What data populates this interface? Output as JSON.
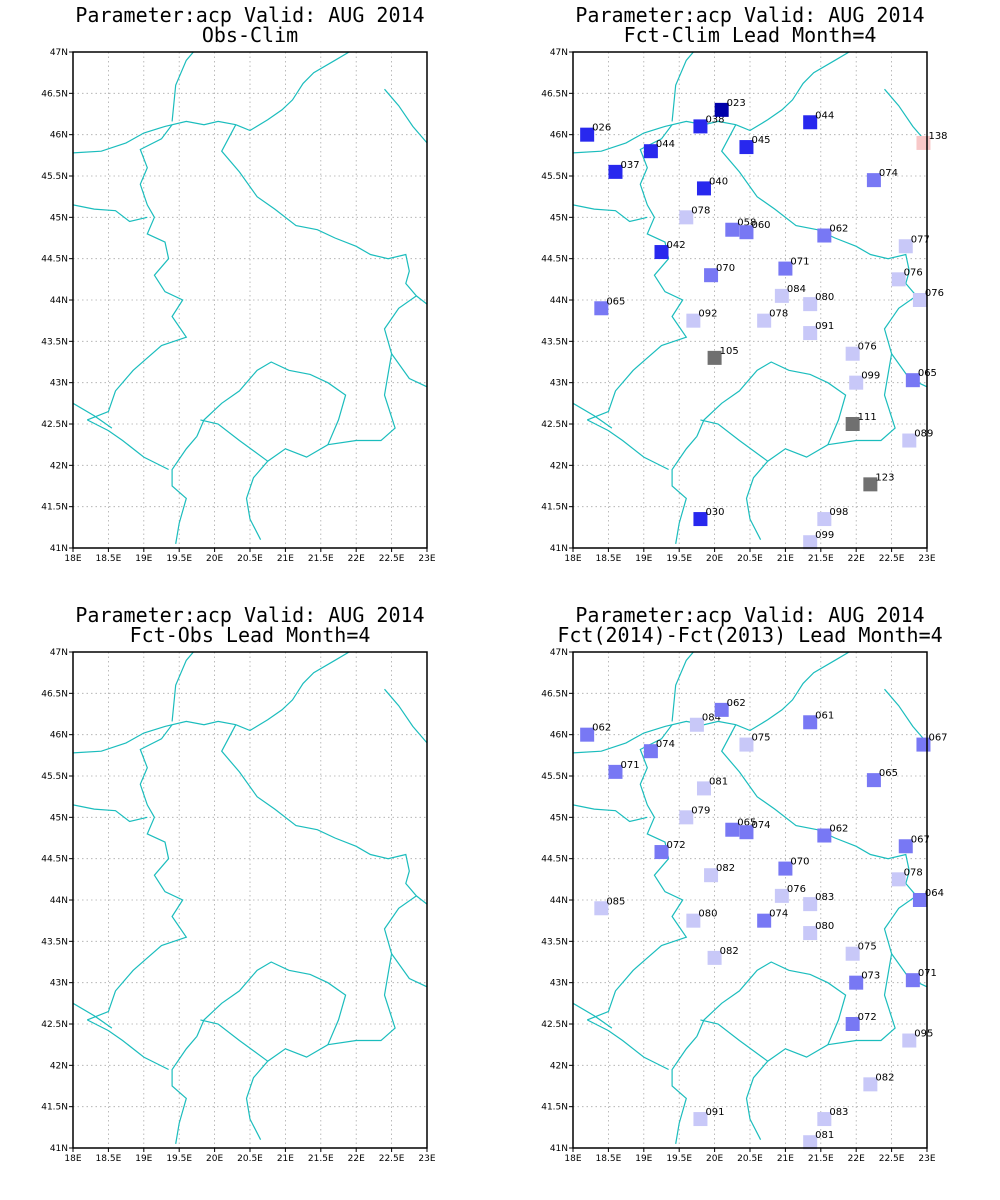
{
  "colors": {
    "border": "#1bbdbd",
    "grid": "#aaaaaa",
    "frame": "#000000",
    "bin_colors": {
      "deep_blue": "#0000aa",
      "blue": "#2828ee",
      "mid_blue": "#7878f4",
      "light_blue": "#c8c8f8",
      "gray": "#707070",
      "pink": "#f8c8c8"
    }
  },
  "axes": {
    "lat_ticks": [
      "41N",
      "41.5N",
      "42N",
      "42.5N",
      "43N",
      "43.5N",
      "44N",
      "44.5N",
      "45N",
      "45.5N",
      "46N",
      "46.5N",
      "47N"
    ],
    "lon_ticks": [
      "18E",
      "18.5E",
      "19E",
      "19.5E",
      "20E",
      "20.5E",
      "21E",
      "21.5E",
      "22E",
      "22.5E",
      "23E"
    ],
    "lat_range": [
      41,
      47
    ],
    "lon_range": [
      18,
      23
    ]
  },
  "panels": [
    {
      "title_line1": "Parameter:acp Valid: AUG 2014",
      "title_line2": "Obs-Clim",
      "stations": []
    },
    {
      "title_line1": "Parameter:acp Valid: AUG 2014",
      "title_line2": "Fct-Clim Lead Month=4",
      "stations": [
        {
          "lon": 18.2,
          "lat": 46.0,
          "label": "026",
          "color": "blue"
        },
        {
          "lon": 18.6,
          "lat": 45.55,
          "label": "037",
          "color": "blue"
        },
        {
          "lon": 19.1,
          "lat": 45.8,
          "label": "044",
          "color": "blue"
        },
        {
          "lon": 19.8,
          "lat": 46.1,
          "label": "038",
          "color": "blue"
        },
        {
          "lon": 20.1,
          "lat": 46.3,
          "label": "023",
          "color": "deep_blue"
        },
        {
          "lon": 20.45,
          "lat": 45.85,
          "label": "045",
          "color": "blue"
        },
        {
          "lon": 21.35,
          "lat": 46.15,
          "label": "044",
          "color": "blue"
        },
        {
          "lon": 22.95,
          "lat": 45.9,
          "label": "138",
          "color": "pink"
        },
        {
          "lon": 19.85,
          "lat": 45.35,
          "label": "040",
          "color": "blue"
        },
        {
          "lon": 22.25,
          "lat": 45.45,
          "label": "074",
          "color": "mid_blue"
        },
        {
          "lon": 19.6,
          "lat": 45.0,
          "label": "078",
          "color": "light_blue"
        },
        {
          "lon": 20.25,
          "lat": 44.85,
          "label": "058",
          "color": "mid_blue"
        },
        {
          "lon": 20.45,
          "lat": 44.82,
          "label": "060",
          "color": "mid_blue"
        },
        {
          "lon": 21.55,
          "lat": 44.78,
          "label": "062",
          "color": "mid_blue"
        },
        {
          "lon": 22.7,
          "lat": 44.65,
          "label": "077",
          "color": "light_blue"
        },
        {
          "lon": 19.25,
          "lat": 44.58,
          "label": "042",
          "color": "blue"
        },
        {
          "lon": 19.95,
          "lat": 44.3,
          "label": "070",
          "color": "mid_blue"
        },
        {
          "lon": 21.0,
          "lat": 44.38,
          "label": "071",
          "color": "mid_blue"
        },
        {
          "lon": 22.6,
          "lat": 44.25,
          "label": "076",
          "color": "light_blue"
        },
        {
          "lon": 22.9,
          "lat": 44.0,
          "label": "076",
          "color": "light_blue"
        },
        {
          "lon": 18.4,
          "lat": 43.9,
          "label": "065",
          "color": "mid_blue"
        },
        {
          "lon": 20.95,
          "lat": 44.05,
          "label": "084",
          "color": "light_blue"
        },
        {
          "lon": 21.35,
          "lat": 43.95,
          "label": "080",
          "color": "light_blue"
        },
        {
          "lon": 19.7,
          "lat": 43.75,
          "label": "092",
          "color": "light_blue"
        },
        {
          "lon": 20.7,
          "lat": 43.75,
          "label": "078",
          "color": "light_blue"
        },
        {
          "lon": 21.35,
          "lat": 43.6,
          "label": "091",
          "color": "light_blue"
        },
        {
          "lon": 20.0,
          "lat": 43.3,
          "label": "105",
          "color": "gray"
        },
        {
          "lon": 21.95,
          "lat": 43.35,
          "label": "076",
          "color": "light_blue"
        },
        {
          "lon": 22.0,
          "lat": 43.0,
          "label": "099",
          "color": "light_blue"
        },
        {
          "lon": 22.8,
          "lat": 43.03,
          "label": "065",
          "color": "mid_blue"
        },
        {
          "lon": 21.95,
          "lat": 42.5,
          "label": "111",
          "color": "gray"
        },
        {
          "lon": 22.75,
          "lat": 42.3,
          "label": "089",
          "color": "light_blue"
        },
        {
          "lon": 22.2,
          "lat": 41.77,
          "label": "123",
          "color": "gray"
        },
        {
          "lon": 19.8,
          "lat": 41.35,
          "label": "030",
          "color": "blue"
        },
        {
          "lon": 21.55,
          "lat": 41.35,
          "label": "098",
          "color": "light_blue"
        },
        {
          "lon": 21.35,
          "lat": 41.07,
          "label": "099",
          "color": "light_blue"
        }
      ]
    },
    {
      "title_line1": "Parameter:acp Valid: AUG 2014",
      "title_line2": "Fct-Obs Lead Month=4",
      "stations": []
    },
    {
      "title_line1": "Parameter:acp Valid: AUG 2014",
      "title_line2": "Fct(2014)-Fct(2013) Lead Month=4",
      "stations": [
        {
          "lon": 18.2,
          "lat": 46.0,
          "label": "062",
          "color": "mid_blue"
        },
        {
          "lon": 18.6,
          "lat": 45.55,
          "label": "071",
          "color": "mid_blue"
        },
        {
          "lon": 19.1,
          "lat": 45.8,
          "label": "074",
          "color": "mid_blue"
        },
        {
          "lon": 19.75,
          "lat": 46.12,
          "label": "084",
          "color": "light_blue"
        },
        {
          "lon": 20.1,
          "lat": 46.3,
          "label": "062",
          "color": "mid_blue"
        },
        {
          "lon": 20.45,
          "lat": 45.88,
          "label": "075",
          "color": "light_blue"
        },
        {
          "lon": 21.35,
          "lat": 46.15,
          "label": "061",
          "color": "mid_blue"
        },
        {
          "lon": 22.95,
          "lat": 45.88,
          "label": "067",
          "color": "mid_blue"
        },
        {
          "lon": 19.85,
          "lat": 45.35,
          "label": "081",
          "color": "light_blue"
        },
        {
          "lon": 22.25,
          "lat": 45.45,
          "label": "065",
          "color": "mid_blue"
        },
        {
          "lon": 19.6,
          "lat": 45.0,
          "label": "079",
          "color": "light_blue"
        },
        {
          "lon": 20.25,
          "lat": 44.85,
          "label": "065",
          "color": "mid_blue"
        },
        {
          "lon": 20.45,
          "lat": 44.82,
          "label": "074",
          "color": "mid_blue"
        },
        {
          "lon": 21.55,
          "lat": 44.78,
          "label": "062",
          "color": "mid_blue"
        },
        {
          "lon": 22.7,
          "lat": 44.65,
          "label": "067",
          "color": "mid_blue"
        },
        {
          "lon": 19.25,
          "lat": 44.58,
          "label": "072",
          "color": "mid_blue"
        },
        {
          "lon": 19.95,
          "lat": 44.3,
          "label": "082",
          "color": "light_blue"
        },
        {
          "lon": 21.0,
          "lat": 44.38,
          "label": "070",
          "color": "mid_blue"
        },
        {
          "lon": 22.6,
          "lat": 44.25,
          "label": "078",
          "color": "light_blue"
        },
        {
          "lon": 22.9,
          "lat": 44.0,
          "label": "064",
          "color": "mid_blue"
        },
        {
          "lon": 18.4,
          "lat": 43.9,
          "label": "085",
          "color": "light_blue"
        },
        {
          "lon": 20.95,
          "lat": 44.05,
          "label": "076",
          "color": "light_blue"
        },
        {
          "lon": 21.35,
          "lat": 43.95,
          "label": "083",
          "color": "light_blue"
        },
        {
          "lon": 19.7,
          "lat": 43.75,
          "label": "080",
          "color": "light_blue"
        },
        {
          "lon": 20.7,
          "lat": 43.75,
          "label": "074",
          "color": "mid_blue"
        },
        {
          "lon": 21.35,
          "lat": 43.6,
          "label": "080",
          "color": "light_blue"
        },
        {
          "lon": 20.0,
          "lat": 43.3,
          "label": "082",
          "color": "light_blue"
        },
        {
          "lon": 21.95,
          "lat": 43.35,
          "label": "075",
          "color": "light_blue"
        },
        {
          "lon": 22.0,
          "lat": 43.0,
          "label": "073",
          "color": "mid_blue"
        },
        {
          "lon": 22.8,
          "lat": 43.03,
          "label": "071",
          "color": "mid_blue"
        },
        {
          "lon": 21.95,
          "lat": 42.5,
          "label": "072",
          "color": "mid_blue"
        },
        {
          "lon": 22.75,
          "lat": 42.3,
          "label": "095",
          "color": "light_blue"
        },
        {
          "lon": 22.2,
          "lat": 41.77,
          "label": "082",
          "color": "light_blue"
        },
        {
          "lon": 19.8,
          "lat": 41.35,
          "label": "091",
          "color": "light_blue"
        },
        {
          "lon": 21.55,
          "lat": 41.35,
          "label": "083",
          "color": "light_blue"
        },
        {
          "lon": 21.35,
          "lat": 41.07,
          "label": "081",
          "color": "light_blue"
        }
      ]
    }
  ]
}
